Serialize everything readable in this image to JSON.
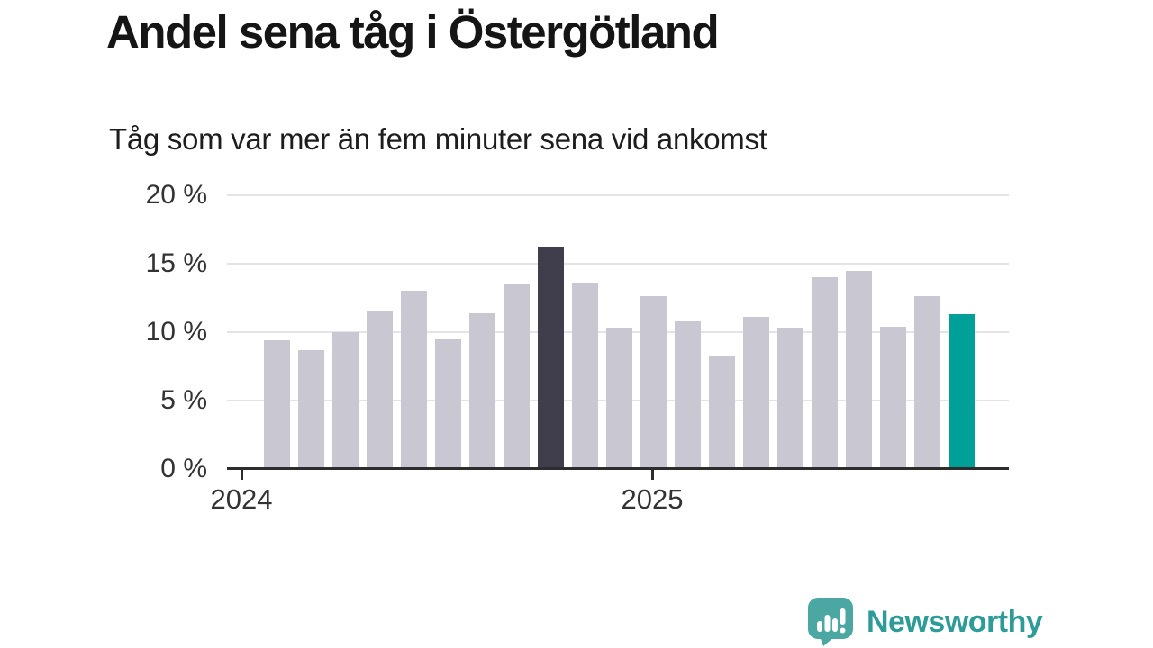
{
  "title": "Andel sena tåg i Östergötland",
  "subtitle": "Tåg som var mer än fem minuter sena vid ankomst",
  "chart_data": {
    "type": "bar",
    "unit": "%",
    "title": "Andel sena tåg i Östergötland",
    "subtitle": "Tåg som var mer än fem minuter sena vid ankomst",
    "x_tick_labels": [
      "2024",
      "2025"
    ],
    "y_ticks": [
      0,
      5,
      10,
      15,
      20
    ],
    "y_tick_labels": [
      "0 %",
      "5 %",
      "10 %",
      "15 %",
      "20 %"
    ],
    "ylim": [
      0,
      20
    ],
    "grid": true,
    "legend": "none",
    "values": [
      9.4,
      8.7,
      10.0,
      11.6,
      13.0,
      9.5,
      11.4,
      13.5,
      16.2,
      13.6,
      10.3,
      12.6,
      10.8,
      8.2,
      11.1,
      10.3,
      14.0,
      14.5,
      10.4,
      12.6,
      11.3
    ],
    "highlight_dark_index": 8,
    "highlight_teal_index": 20,
    "bar_colors": {
      "default": "#c9c7d2",
      "highlight_dark": "#403e4c",
      "highlight_teal": "#00a099"
    },
    "gridline_color": "#e4e4e8",
    "axis_color": "#2d2d2d",
    "tick_text_color": "#333333"
  },
  "branding": {
    "logo_text": "Newsworthy",
    "logo_text_color": "#2d9c98",
    "logo_icon_color": "#4ba7a2",
    "logo_icon": "speech-bubble-bar-chart-icon"
  }
}
